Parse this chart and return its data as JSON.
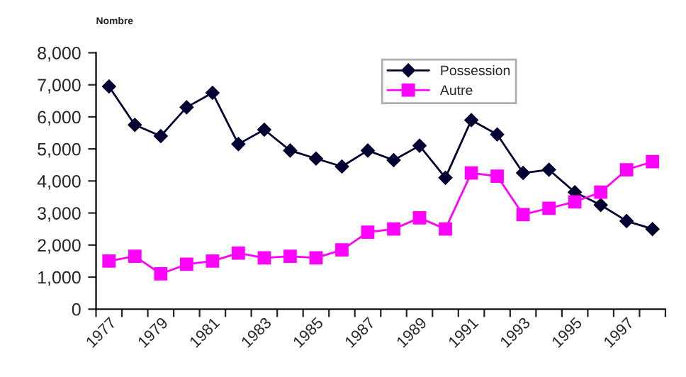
{
  "chart_data": {
    "type": "line",
    "ylabel": "Nombre",
    "categories": [
      "1977",
      null,
      "1979",
      null,
      "1981",
      null,
      "1983",
      null,
      "1985",
      null,
      "1987",
      null,
      "1989",
      null,
      "1991",
      null,
      "1993",
      null,
      "1995",
      null,
      "1997",
      null
    ],
    "series": [
      {
        "name": "Possession",
        "color": "#000033",
        "marker": "diamond",
        "values": [
          6950,
          5750,
          5400,
          6300,
          6750,
          5150,
          5600,
          4950,
          4700,
          4450,
          4950,
          4650,
          5100,
          4100,
          5900,
          5450,
          4250,
          4350,
          3650,
          3250,
          2750,
          2500
        ]
      },
      {
        "name": "Autre",
        "color": "#ff00ff",
        "marker": "square",
        "values": [
          1500,
          1650,
          1100,
          1400,
          1500,
          1750,
          1600,
          1650,
          1600,
          1850,
          2400,
          2500,
          2850,
          2500,
          4250,
          4150,
          2950,
          3150,
          3350,
          3650,
          4350,
          4600
        ]
      }
    ],
    "ylim": [
      0,
      8000
    ],
    "yticks": [
      {
        "value": 0,
        "label": "0"
      },
      {
        "value": 1000,
        "label": "1,000"
      },
      {
        "value": 2000,
        "label": "2,000"
      },
      {
        "value": 3000,
        "label": "3,000"
      },
      {
        "value": 4000,
        "label": "4,000"
      },
      {
        "value": 5000,
        "label": "5,000"
      },
      {
        "value": 6000,
        "label": "6,000"
      },
      {
        "value": 7000,
        "label": "7,000"
      },
      {
        "value": 8000,
        "label": "8,000"
      }
    ],
    "grid": false,
    "legend": "top",
    "line_style": "solid"
  }
}
